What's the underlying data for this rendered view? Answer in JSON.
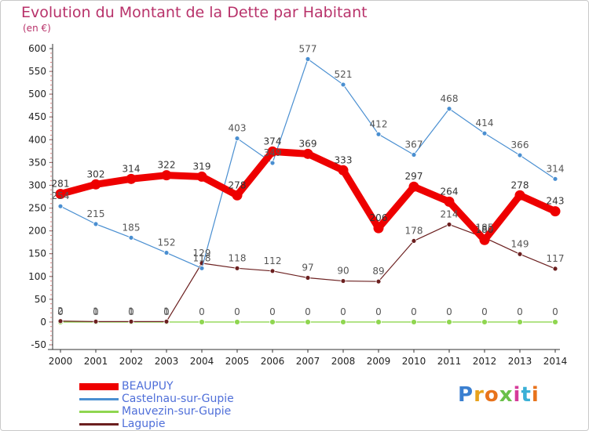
{
  "header": {
    "title": "Evolution du Montant de la Dette par Habitant",
    "subtitle": "(en €)"
  },
  "logo": {
    "text": "Proxiti"
  },
  "chart_data": {
    "type": "line",
    "title": "Evolution du Montant de la Dette par Habitant",
    "subtitle": "(en €)",
    "xlabel": "",
    "ylabel": "",
    "x": [
      "2000",
      "2001",
      "2002",
      "2003",
      "2004",
      "2005",
      "2006",
      "2007",
      "2008",
      "2009",
      "2010",
      "2011",
      "2012",
      "2013",
      "2014"
    ],
    "ylim": [
      -50,
      600
    ],
    "yticks": [
      -50,
      0,
      50,
      100,
      150,
      200,
      250,
      300,
      350,
      400,
      450,
      500,
      550,
      600
    ],
    "grid": false,
    "legend_position": "bottom-left",
    "series": [
      {
        "name": "BEAUPUY",
        "color": "#ee0000",
        "values": [
          281,
          302,
          314,
          322,
          319,
          278,
          374,
          369,
          333,
          206,
          297,
          264,
          180,
          278,
          243
        ]
      },
      {
        "name": "Castelnau-sur-Gupie",
        "color": "#4a8fd1",
        "values": [
          254,
          215,
          185,
          152,
          118,
          403,
          349,
          577,
          521,
          412,
          367,
          468,
          414,
          366,
          314
        ]
      },
      {
        "name": "Mauvezin-sur-Gupie",
        "color": "#8fd650",
        "values": [
          0,
          0,
          0,
          0,
          0,
          0,
          0,
          0,
          0,
          0,
          0,
          0,
          0,
          0,
          0
        ]
      },
      {
        "name": "Lagupie",
        "color": "#6b1f1f",
        "values": [
          2,
          1,
          1,
          1,
          129,
          118,
          112,
          97,
          90,
          89,
          178,
          214,
          185,
          149,
          117
        ]
      }
    ]
  }
}
